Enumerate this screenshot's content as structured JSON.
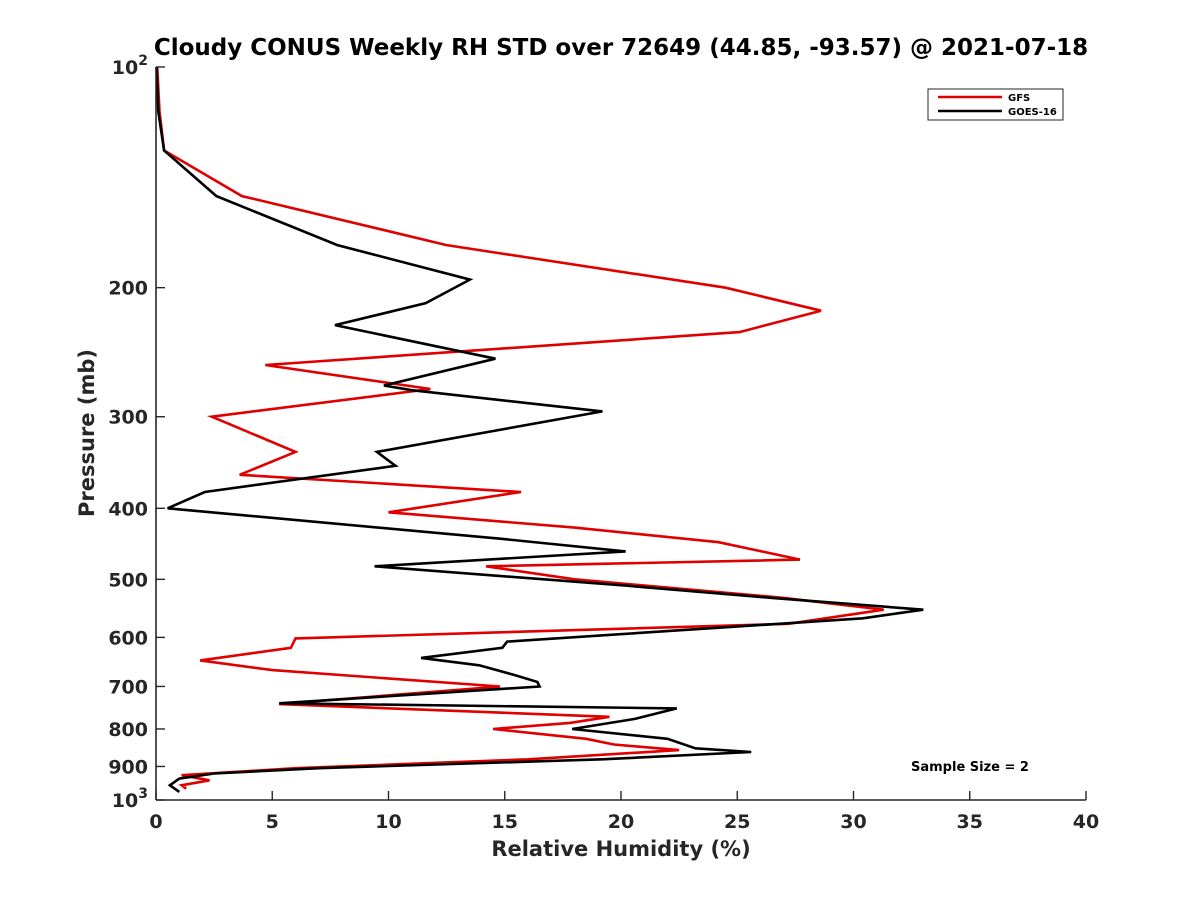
{
  "chart_data": {
    "type": "line",
    "title": "Cloudy CONUS Weekly RH STD over 72649 (44.85, -93.57) @ 2021-07-18",
    "xlabel": "Relative Humidity (%)",
    "ylabel": "Pressure (mb)",
    "xlim": [
      0,
      40
    ],
    "ylim": [
      100,
      1000
    ],
    "y_scale": "log",
    "y_reversed": true,
    "x_ticks": [
      "0",
      "5",
      "10",
      "15",
      "20",
      "25",
      "30",
      "35",
      "40"
    ],
    "y_ticks": [
      {
        "value": 100,
        "base": "10",
        "exp": "2"
      },
      {
        "value": 200,
        "label": "200"
      },
      {
        "value": 300,
        "label": "300"
      },
      {
        "value": 400,
        "label": "400"
      },
      {
        "value": 500,
        "label": "500"
      },
      {
        "value": 600,
        "label": "600"
      },
      {
        "value": 700,
        "label": "700"
      },
      {
        "value": 800,
        "label": "800"
      },
      {
        "value": 900,
        "label": "900"
      },
      {
        "value": 1000,
        "base": "10",
        "exp": "3"
      }
    ],
    "grid": false,
    "legend_position": "top-right",
    "annotation": "Sample Size = 2",
    "series": [
      {
        "name": "GFS",
        "color": "#e00000",
        "points": [
          [
            0.05,
            100
          ],
          [
            0.15,
            115
          ],
          [
            0.35,
            130
          ],
          [
            3.7,
            150
          ],
          [
            12.5,
            175
          ],
          [
            24.5,
            200
          ],
          [
            28.6,
            215
          ],
          [
            25.1,
            230
          ],
          [
            4.7,
            255
          ],
          [
            11.8,
            275
          ],
          [
            2.4,
            300
          ],
          [
            6.0,
            335
          ],
          [
            3.6,
            360
          ],
          [
            15.7,
            380
          ],
          [
            10.0,
            405
          ],
          [
            18.0,
            425
          ],
          [
            24.2,
            445
          ],
          [
            27.7,
            470
          ],
          [
            14.2,
            480
          ],
          [
            18.0,
            500
          ],
          [
            27.0,
            530
          ],
          [
            31.3,
            550
          ],
          [
            27.2,
            575
          ],
          [
            6.0,
            602
          ],
          [
            5.8,
            620
          ],
          [
            1.9,
            645
          ],
          [
            5.0,
            665
          ],
          [
            14.8,
            700
          ],
          [
            5.3,
            740
          ],
          [
            19.5,
            770
          ],
          [
            17.8,
            785
          ],
          [
            14.5,
            800
          ],
          [
            18.5,
            825
          ],
          [
            19.7,
            840
          ],
          [
            22.5,
            855
          ],
          [
            16.0,
            880
          ],
          [
            6.0,
            905
          ],
          [
            1.1,
            925
          ],
          [
            2.3,
            940
          ],
          [
            1.1,
            955
          ],
          [
            1.3,
            965
          ]
        ]
      },
      {
        "name": "GOES-16",
        "color": "#000000",
        "points": [
          [
            0.02,
            100
          ],
          [
            0.1,
            115
          ],
          [
            0.35,
            130
          ],
          [
            2.6,
            150
          ],
          [
            7.8,
            175
          ],
          [
            13.5,
            195
          ],
          [
            11.6,
            210
          ],
          [
            7.7,
            225
          ],
          [
            14.6,
            250
          ],
          [
            9.8,
            272
          ],
          [
            11.0,
            276
          ],
          [
            19.2,
            295
          ],
          [
            9.5,
            335
          ],
          [
            10.3,
            350
          ],
          [
            2.1,
            380
          ],
          [
            0.5,
            400
          ],
          [
            14.8,
            440
          ],
          [
            20.2,
            458
          ],
          [
            9.4,
            480
          ],
          [
            20.2,
            510
          ],
          [
            26.5,
            530
          ],
          [
            33.0,
            550
          ],
          [
            30.4,
            565
          ],
          [
            15.1,
            608
          ],
          [
            14.9,
            620
          ],
          [
            11.4,
            640
          ],
          [
            13.9,
            655
          ],
          [
            15.4,
            675
          ],
          [
            16.4,
            690
          ],
          [
            16.5,
            700
          ],
          [
            5.3,
            738
          ],
          [
            22.4,
            750
          ],
          [
            20.6,
            775
          ],
          [
            17.9,
            800
          ],
          [
            22.0,
            825
          ],
          [
            23.2,
            850
          ],
          [
            25.6,
            860
          ],
          [
            19.2,
            880
          ],
          [
            7.0,
            905
          ],
          [
            2.5,
            920
          ],
          [
            1.0,
            935
          ],
          [
            0.6,
            955
          ],
          [
            1.0,
            975
          ]
        ]
      }
    ]
  }
}
